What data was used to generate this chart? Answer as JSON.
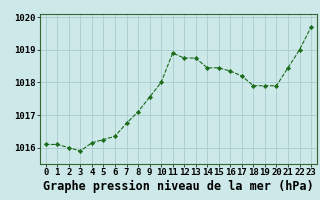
{
  "x": [
    0,
    1,
    2,
    3,
    4,
    5,
    6,
    7,
    8,
    9,
    10,
    11,
    12,
    13,
    14,
    15,
    16,
    17,
    18,
    19,
    20,
    21,
    22,
    23
  ],
  "y": [
    1016.1,
    1016.1,
    1016.0,
    1015.9,
    1016.15,
    1016.25,
    1016.35,
    1016.75,
    1017.1,
    1017.55,
    1018.0,
    1018.9,
    1018.75,
    1018.75,
    1018.45,
    1018.45,
    1018.35,
    1018.2,
    1017.9,
    1017.9,
    1017.9,
    1018.45,
    1019.0,
    1019.7
  ],
  "line_color": "#1a6b1a",
  "marker_color": "#1a6b1a",
  "bg_color": "#cce8e8",
  "grid_color": "#aacccc",
  "title": "Graphe pression niveau de la mer (hPa)",
  "ylim": [
    1015.5,
    1020.1
  ],
  "xlim": [
    -0.5,
    23.5
  ],
  "yticks": [
    1016,
    1017,
    1018,
    1019,
    1020
  ],
  "xtick_labels": [
    "0",
    "1",
    "2",
    "3",
    "4",
    "5",
    "6",
    "7",
    "8",
    "9",
    "10",
    "11",
    "12",
    "13",
    "14",
    "15",
    "16",
    "17",
    "18",
    "19",
    "20",
    "21",
    "22",
    "23"
  ],
  "title_fontsize": 8.5,
  "tick_fontsize": 6.5
}
